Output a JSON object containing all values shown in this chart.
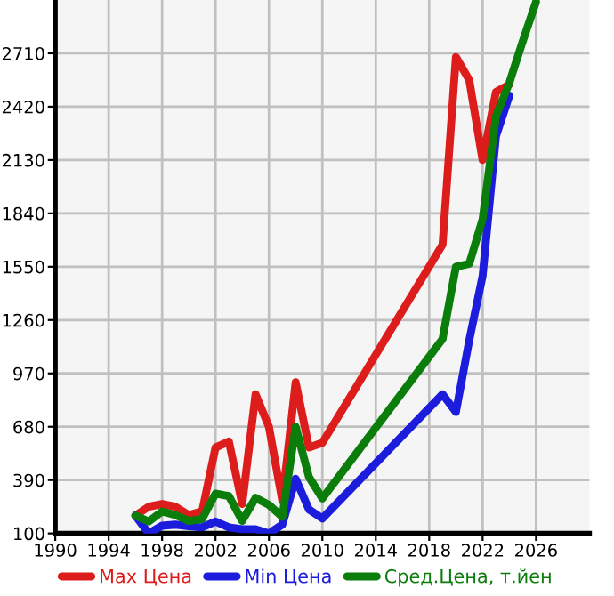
{
  "chart_data": {
    "type": "line",
    "x": [
      1996,
      1997,
      1998,
      1999,
      2000,
      2001,
      2002,
      2003,
      2004,
      2005,
      2006,
      2007,
      2008,
      2009,
      2010,
      2019,
      2020,
      2021,
      2022,
      2023,
      2024,
      2025,
      2026
    ],
    "series": [
      {
        "name": "Max Цена",
        "color": "#dd1c1c",
        "values": [
          197,
          245,
          260,
          245,
          200,
          220,
          567,
          600,
          260,
          857,
          680,
          277,
          922,
          567,
          593,
          1670,
          2690,
          2565,
          2130,
          2500,
          2540,
          null,
          null
        ]
      },
      {
        "name": "Min Цена",
        "color": "#1c1cdd",
        "values": [
          197,
          100,
          142,
          148,
          139,
          133,
          165,
          133,
          123,
          123,
          100,
          148,
          397,
          230,
          181,
          857,
          760,
          1150,
          1500,
          2259,
          2480,
          null,
          null
        ]
      },
      {
        "name": "Сред.Цена, т.йен",
        "color": "#0a7d0a",
        "values": [
          197,
          165,
          219,
          200,
          168,
          178,
          316,
          303,
          168,
          293,
          255,
          190,
          680,
          406,
          290,
          1157,
          1550,
          1566,
          1808,
          2368,
          2550,
          2775,
          2990
        ]
      }
    ],
    "xlim": [
      1990,
      2030
    ],
    "xticks": [
      1990,
      1994,
      1998,
      2002,
      2006,
      2010,
      2014,
      2018,
      2022,
      2026
    ],
    "ylim": [
      100,
      3000
    ],
    "yticks": [
      100,
      390,
      680,
      970,
      1260,
      1550,
      1840,
      2130,
      2420,
      2710
    ],
    "grid": true,
    "legend": "bottom",
    "marker": "none",
    "line_style": "solid"
  }
}
